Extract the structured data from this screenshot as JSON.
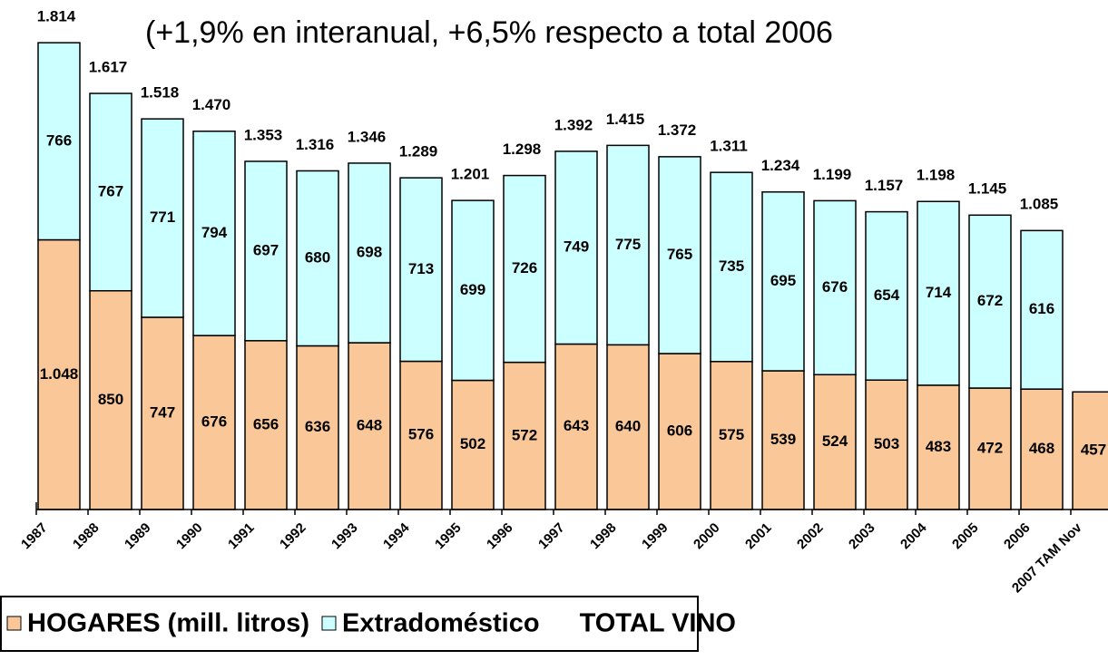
{
  "chart_data": {
    "type": "bar",
    "stacked": true,
    "subtitle": "(+1,9% en interanual, +6,5% respecto a total 2006",
    "categories": [
      "1987",
      "1988",
      "1989",
      "1990",
      "1991",
      "1992",
      "1993",
      "1994",
      "1995",
      "1996",
      "1997",
      "1998",
      "1999",
      "2000",
      "2001",
      "2002",
      "2003",
      "2004",
      "2005",
      "2006",
      "2007 TAM Nov"
    ],
    "series": [
      {
        "name": "HOGARES (mill. litros)",
        "color": "#fac898",
        "values": [
          1048,
          850,
          747,
          676,
          656,
          636,
          648,
          576,
          502,
          572,
          643,
          640,
          606,
          575,
          539,
          524,
          503,
          483,
          472,
          468,
          457
        ],
        "value_labels": [
          "1.048",
          "850",
          "747",
          "676",
          "656",
          "636",
          "648",
          "576",
          "502",
          "572",
          "643",
          "640",
          "606",
          "575",
          "539",
          "524",
          "503",
          "483",
          "472",
          "468",
          "457"
        ]
      },
      {
        "name": "Extradoméstico",
        "color": "#ccffff",
        "values": [
          766,
          767,
          771,
          794,
          697,
          680,
          698,
          713,
          699,
          726,
          749,
          775,
          765,
          735,
          695,
          676,
          654,
          714,
          672,
          616,
          null
        ],
        "value_labels": [
          "766",
          "767",
          "771",
          "794",
          "697",
          "680",
          "698",
          "713",
          "699",
          "726",
          "749",
          "775",
          "765",
          "735",
          "695",
          "676",
          "654",
          "714",
          "672",
          "616",
          null
        ]
      }
    ],
    "totals": {
      "name": "TOTAL VINO",
      "values": [
        1814,
        1617,
        1518,
        1470,
        1353,
        1316,
        1346,
        1289,
        1201,
        1298,
        1392,
        1415,
        1372,
        1311,
        1234,
        1199,
        1157,
        1198,
        1145,
        1085,
        null
      ],
      "value_labels": [
        "1.814",
        "1.617",
        "1.518",
        "1.470",
        "1.353",
        "1.316",
        "1.346",
        "1.289",
        "1.201",
        "1.298",
        "1.392",
        "1.415",
        "1.372",
        "1.311",
        "1.234",
        "1.199",
        "1.157",
        "1.198",
        "1.145",
        "1.085",
        null
      ]
    },
    "ylim": [
      0,
      1980
    ]
  }
}
